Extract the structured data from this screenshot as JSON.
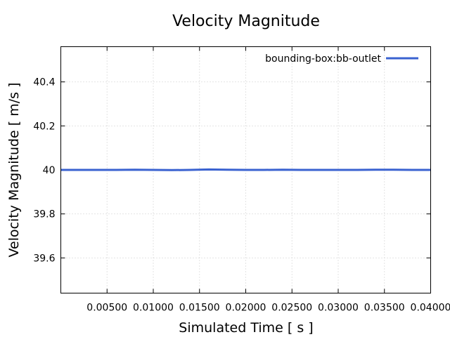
{
  "chart_data": {
    "type": "line",
    "title": "Velocity Magnitude",
    "xlabel": "Simulated Time [ s ]",
    "ylabel": "Velocity Magnitude [ m/s ]",
    "xlim": [
      0.0,
      0.04
    ],
    "ylim": [
      39.44,
      40.56
    ],
    "xticks": [
      0.005,
      0.01,
      0.015,
      0.02,
      0.025,
      0.03,
      0.035,
      0.04
    ],
    "xtick_labels": [
      "0.00500",
      "0.01000",
      "0.01500",
      "0.02000",
      "0.02500",
      "0.03000",
      "0.03500",
      "0.04000"
    ],
    "yticks": [
      39.6,
      39.8,
      40.0,
      40.2,
      40.4
    ],
    "ytick_labels": [
      "39.6",
      "39.8",
      "40",
      "40.2",
      "40.4"
    ],
    "grid": true,
    "legend_position": "top-right",
    "series": [
      {
        "name": "bounding-box:bb-outlet",
        "color": "#3a62d0",
        "x": [
          0.0,
          0.002,
          0.004,
          0.006,
          0.008,
          0.01,
          0.012,
          0.014,
          0.016,
          0.018,
          0.02,
          0.022,
          0.024,
          0.026,
          0.028,
          0.03,
          0.032,
          0.034,
          0.036,
          0.038,
          0.04
        ],
        "y": [
          40.0,
          40.0,
          40.0,
          40.0,
          40.001,
          40.0,
          39.999,
          40.0,
          40.002,
          40.001,
          40.0,
          40.0,
          40.001,
          40.0,
          40.0,
          40.0,
          40.0,
          40.001,
          40.001,
          40.0,
          40.0
        ]
      }
    ]
  }
}
